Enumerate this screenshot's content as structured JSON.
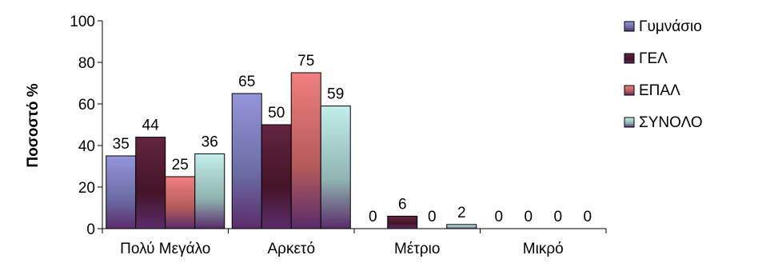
{
  "chart_data": {
    "type": "bar",
    "title": "",
    "xlabel": "",
    "ylabel": "Ποσοστό %",
    "ylim": [
      0,
      100
    ],
    "yticks": [
      0,
      20,
      40,
      60,
      80,
      100
    ],
    "grid": false,
    "legend_position": "right",
    "categories": [
      "Πολύ Μεγάλο",
      "Αρκετό",
      "Μέτριο",
      "Μικρό"
    ],
    "series": [
      {
        "name": "Γυμνάσιο",
        "color": "#8f8fd9",
        "values": [
          35,
          65,
          0,
          0
        ]
      },
      {
        "name": "ΓΕΛ",
        "color": "#5a1a35",
        "values": [
          44,
          50,
          6,
          0
        ]
      },
      {
        "name": "ΕΠΑΛ",
        "color": "#f07878",
        "values": [
          25,
          75,
          0,
          0
        ]
      },
      {
        "name": "ΣΥΝΟΛΟ",
        "color": "#bfeeea",
        "values": [
          36,
          59,
          2,
          0
        ]
      }
    ]
  }
}
